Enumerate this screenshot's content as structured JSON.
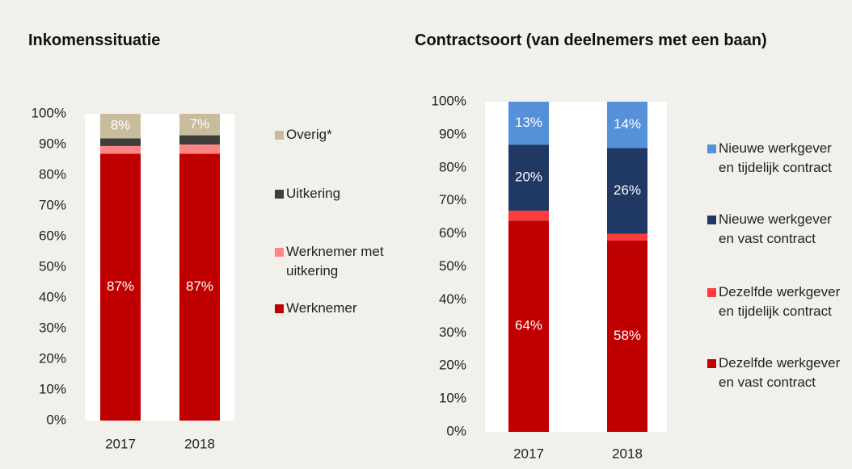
{
  "chart_data": [
    {
      "type": "bar",
      "stacked": true,
      "title": "Inkomenssituatie",
      "categories": [
        "2017",
        "2018"
      ],
      "ylim": [
        0,
        100
      ],
      "yticks": [
        {
          "value": 0,
          "label": "0%"
        },
        {
          "value": 10,
          "label": "10%"
        },
        {
          "value": 20,
          "label": "20%"
        },
        {
          "value": 30,
          "label": "30%"
        },
        {
          "value": 40,
          "label": "40%"
        },
        {
          "value": 50,
          "label": "50%"
        },
        {
          "value": 60,
          "label": "60%"
        },
        {
          "value": 70,
          "label": "70%"
        },
        {
          "value": 80,
          "label": "80%"
        },
        {
          "value": 90,
          "label": "90%"
        },
        {
          "value": 100,
          "label": "100%"
        }
      ],
      "series": [
        {
          "name": "Werknemer",
          "color": "#c00000",
          "values": [
            87,
            87
          ],
          "value_labels": [
            "87%",
            "87%"
          ]
        },
        {
          "name": "Werknemer met uitkering",
          "color": "#ff8585",
          "values": [
            2.5,
            3
          ]
        },
        {
          "name": "Uitkering",
          "color": "#3d3d3d",
          "values": [
            2.5,
            3
          ]
        },
        {
          "name": "Overig*",
          "color": "#c8bc9c",
          "values": [
            8,
            7
          ],
          "value_labels": [
            "8%",
            "7%"
          ]
        }
      ]
    },
    {
      "type": "bar",
      "stacked": true,
      "title": "Contractsoort (van deelnemers met een baan)",
      "categories": [
        "2017",
        "2018"
      ],
      "ylim": [
        0,
        100
      ],
      "yticks": [
        {
          "value": 0,
          "label": "0%"
        },
        {
          "value": 10,
          "label": "10%"
        },
        {
          "value": 20,
          "label": "20%"
        },
        {
          "value": 30,
          "label": "30%"
        },
        {
          "value": 40,
          "label": "40%"
        },
        {
          "value": 50,
          "label": "50%"
        },
        {
          "value": 60,
          "label": "60%"
        },
        {
          "value": 70,
          "label": "70%"
        },
        {
          "value": 80,
          "label": "80%"
        },
        {
          "value": 90,
          "label": "90%"
        },
        {
          "value": 100,
          "label": "100%"
        }
      ],
      "series": [
        {
          "name": "Dezelfde werkgever en vast contract",
          "color": "#c00000",
          "values": [
            64,
            58
          ],
          "value_labels": [
            "64%",
            "58%"
          ]
        },
        {
          "name": "Dezelfde werkgever en tijdelijk contract",
          "color": "#ff3b3b",
          "values": [
            3,
            2
          ]
        },
        {
          "name": "Nieuwe werkgever en vast contract",
          "color": "#1f3864",
          "values": [
            20,
            26
          ],
          "value_labels": [
            "20%",
            "26%"
          ]
        },
        {
          "name": "Nieuwe werkgever en tijdelijk contract",
          "color": "#5591d8",
          "values": [
            13,
            14
          ],
          "value_labels": [
            "13%",
            "14%"
          ]
        }
      ]
    }
  ]
}
